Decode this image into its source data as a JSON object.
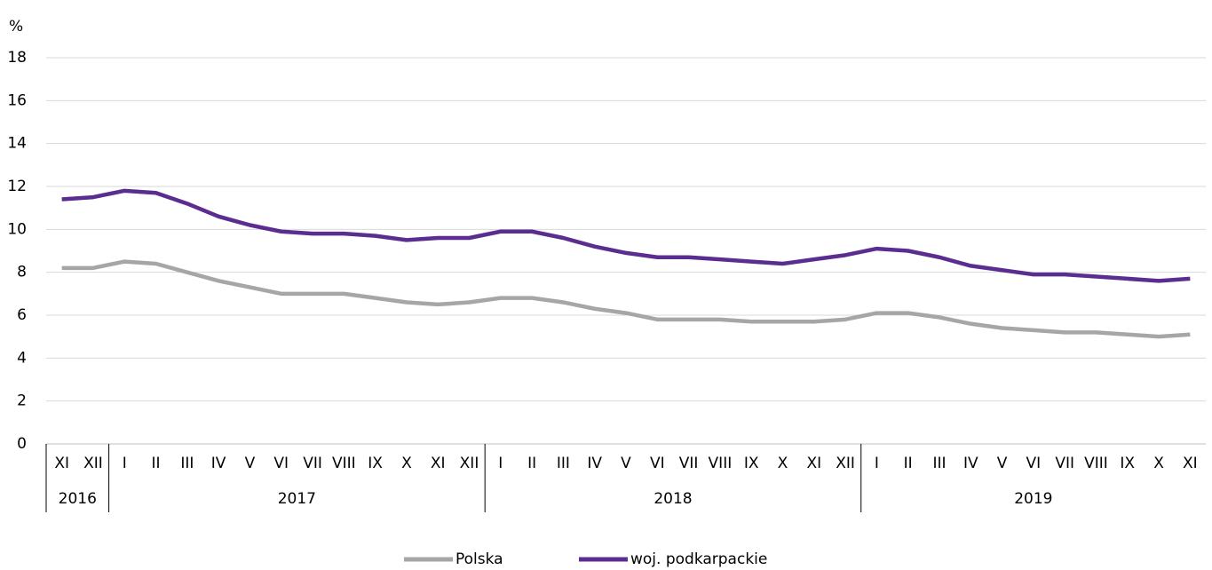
{
  "chart_data": {
    "type": "line",
    "y_label": "%",
    "categories": [
      "XI",
      "XII",
      "I",
      "II",
      "III",
      "IV",
      "V",
      "VI",
      "VII",
      "VIII",
      "IX",
      "X",
      "XI",
      "XII",
      "I",
      "II",
      "III",
      "IV",
      "V",
      "VI",
      "VII",
      "VIII",
      "IX",
      "X",
      "XI",
      "XII",
      "I",
      "II",
      "III",
      "IV",
      "V",
      "VI",
      "VII",
      "VIII",
      "IX",
      "X",
      "XI"
    ],
    "x_groups": [
      "2016",
      "2017",
      "2018",
      "2019"
    ],
    "series": [
      {
        "name": "Polska",
        "color": "#a6a6a6",
        "values": [
          8.2,
          8.2,
          8.5,
          8.4,
          8.0,
          7.6,
          7.3,
          7.0,
          7.0,
          7.0,
          6.8,
          6.6,
          6.5,
          6.6,
          6.8,
          6.8,
          6.6,
          6.3,
          6.1,
          5.8,
          5.8,
          5.8,
          5.7,
          5.7,
          5.7,
          5.8,
          6.1,
          6.1,
          5.9,
          5.6,
          5.4,
          5.3,
          5.2,
          5.2,
          5.1,
          5.0,
          5.1
        ]
      },
      {
        "name": "woj. podkarpackie",
        "color": "#5b2d90",
        "values": [
          11.4,
          11.5,
          11.8,
          11.7,
          11.2,
          10.6,
          10.2,
          9.9,
          9.8,
          9.8,
          9.7,
          9.5,
          9.6,
          9.6,
          9.9,
          9.9,
          9.6,
          9.2,
          8.9,
          8.7,
          8.7,
          8.6,
          8.5,
          8.4,
          8.6,
          8.8,
          9.1,
          9.0,
          8.7,
          8.3,
          8.1,
          7.9,
          7.9,
          7.8,
          7.7,
          7.6,
          7.7
        ]
      }
    ],
    "ylim": [
      0,
      18
    ],
    "yticks": [
      0,
      2,
      4,
      6,
      8,
      10,
      12,
      14,
      16,
      18
    ],
    "grid": true,
    "legend": "bottom"
  }
}
